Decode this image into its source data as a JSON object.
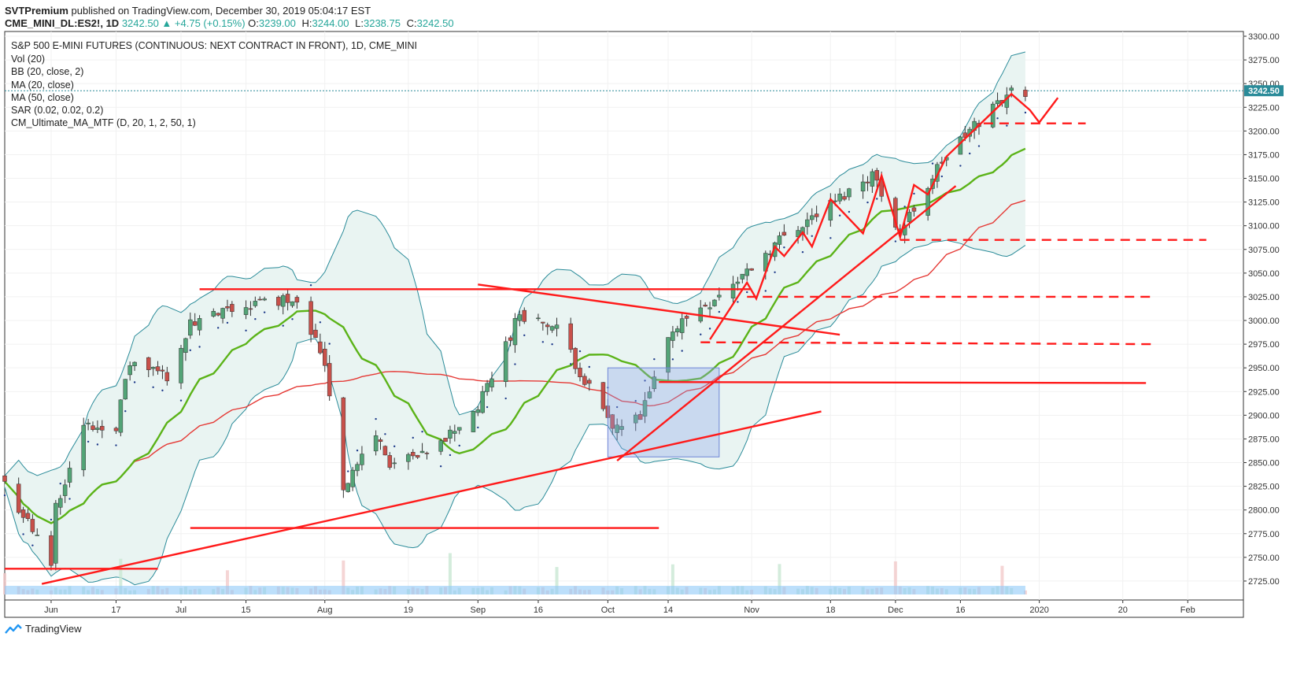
{
  "header": {
    "author": "SVTPremium",
    "published": "published on TradingView.com, December 30, 2019 05:04:17 EST",
    "symbol": "CME_MINI_DL:ES2!, 1D",
    "change": "3242.50 ▲ +4.75 (+0.15%)",
    "ohlc": {
      "O": "3239.00",
      "H": "3244.00",
      "L": "3238.75",
      "C": "3242.50"
    },
    "ohlc_labels": {
      "O": "O:",
      "H": "H:",
      "L": "L:",
      "C": "C:"
    }
  },
  "legend": {
    "title": "S&P 500 E-MINI FUTURES (CONTINUOUS: NEXT CONTRACT IN FRONT), 1D, CME_MINI",
    "indicators": [
      "Vol (20)",
      "BB (20, close, 2)",
      "MA (20, close)",
      "MA (50, close)",
      "SAR (0.02, 0.02, 0.2)",
      "CM_Ultimate_MA_MTF (D, 20, 1, 2, 50, 1)"
    ]
  },
  "price_label": "3242.50",
  "footer": {
    "brand": "TradingView"
  },
  "colors": {
    "up": "#53a477",
    "down": "#c8504a",
    "bb": "#2a8b99",
    "bb_fill": "#e9f4f2",
    "ma20": "#5bb318",
    "ma50": "#e53935",
    "cm_ma": "#c0392b",
    "drawing": "#ff1a1a",
    "box": "#8fa5ea",
    "vol": "#90caf9"
  },
  "chart_data": {
    "type": "candlestick",
    "y_axis": {
      "range": [
        2705,
        3305
      ],
      "ticks": [
        3300,
        3275,
        3250,
        3225,
        3200,
        3175,
        3150,
        3125,
        3100,
        3075,
        3050,
        3025,
        3000,
        2975,
        2950,
        2925,
        2900,
        2875,
        2850,
        2825,
        2800,
        2775,
        2750,
        2725
      ],
      "tick_labels": [
        "3300.00",
        "3275.00",
        "3250.00",
        "3225.00",
        "3200.00",
        "3175.00",
        "3150.00",
        "3125.00",
        "3100.00",
        "3075.00",
        "3050.00",
        "3025.00",
        "3000.00",
        "2975.00",
        "2950.00",
        "2925.00",
        "2900.00",
        "2875.00",
        "2850.00",
        "2825.00",
        "2800.00",
        "2775.00",
        "2750.00",
        "2725.00"
      ]
    },
    "x_axis": {
      "labels": [
        {
          "label": "Jun",
          "date": "2019-06-03"
        },
        {
          "label": "17",
          "date": "2019-06-17"
        },
        {
          "label": "Jul",
          "date": "2019-07-01"
        },
        {
          "label": "15",
          "date": "2019-07-15"
        },
        {
          "label": "Aug",
          "date": "2019-08-01"
        },
        {
          "label": "19",
          "date": "2019-08-19"
        },
        {
          "label": "Sep",
          "date": "2019-09-03"
        },
        {
          "label": "16",
          "date": "2019-09-16"
        },
        {
          "label": "Oct",
          "date": "2019-10-01"
        },
        {
          "label": "14",
          "date": "2019-10-14"
        },
        {
          "label": "Nov",
          "date": "2019-11-01"
        },
        {
          "label": "18",
          "date": "2019-11-18"
        },
        {
          "label": "Dec",
          "date": "2019-12-02"
        },
        {
          "label": "16",
          "date": "2019-12-16"
        },
        {
          "label": "2020",
          "date": "2020-01-02"
        },
        {
          "label": "20",
          "date": "2020-01-20"
        },
        {
          "label": "Feb",
          "date": "2020-02-03"
        }
      ]
    },
    "series_close": [
      {
        "date": "2019-05-24",
        "close": 2828
      },
      {
        "date": "2019-06-03",
        "close": 2744
      },
      {
        "date": "2019-06-04",
        "close": 2805
      },
      {
        "date": "2019-06-10",
        "close": 2887
      },
      {
        "date": "2019-06-17",
        "close": 2890
      },
      {
        "date": "2019-06-20",
        "close": 2955
      },
      {
        "date": "2019-06-28",
        "close": 2942
      },
      {
        "date": "2019-07-03",
        "close": 2995
      },
      {
        "date": "2019-07-15",
        "close": 3016
      },
      {
        "date": "2019-07-26",
        "close": 3025
      },
      {
        "date": "2019-08-01",
        "close": 2956
      },
      {
        "date": "2019-08-05",
        "close": 2824
      },
      {
        "date": "2019-08-12",
        "close": 2880
      },
      {
        "date": "2019-08-15",
        "close": 2849
      },
      {
        "date": "2019-08-23",
        "close": 2856
      },
      {
        "date": "2019-08-27",
        "close": 2876
      },
      {
        "date": "2019-09-03",
        "close": 2908
      },
      {
        "date": "2019-09-12",
        "close": 3008
      },
      {
        "date": "2019-09-20",
        "close": 2990
      },
      {
        "date": "2019-10-02",
        "close": 2885
      },
      {
        "date": "2019-10-08",
        "close": 2896
      },
      {
        "date": "2019-10-15",
        "close": 2992
      },
      {
        "date": "2019-10-28",
        "close": 3038
      },
      {
        "date": "2019-11-08",
        "close": 3090
      },
      {
        "date": "2019-11-18",
        "close": 3122
      },
      {
        "date": "2019-11-27",
        "close": 3155
      },
      {
        "date": "2019-12-03",
        "close": 3093
      },
      {
        "date": "2019-12-12",
        "close": 3168
      },
      {
        "date": "2019-12-19",
        "close": 3205
      },
      {
        "date": "2019-12-26",
        "close": 3240
      },
      {
        "date": "2019-12-30",
        "close": 3242.5
      }
    ],
    "last_price": 3242.5
  }
}
